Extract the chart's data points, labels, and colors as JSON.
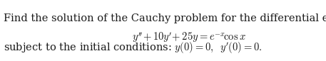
{
  "line1": "Find the solution of the Cauchy problem for the differential equation",
  "line2_math": "$y^{\\prime\\prime}+10y^{\\prime}+25y=e^{-x}\\!\\cos x$",
  "line3_text": "subject to the initial conditions: ",
  "line3_math": "$y(0)=0,\\;\\; y^{\\prime}(0)=0.$",
  "background_color": "#ffffff",
  "text_color": "#1a1a1a",
  "fontsize": 10.5,
  "fig_width": 4.57,
  "fig_height": 0.86,
  "dpi": 100
}
